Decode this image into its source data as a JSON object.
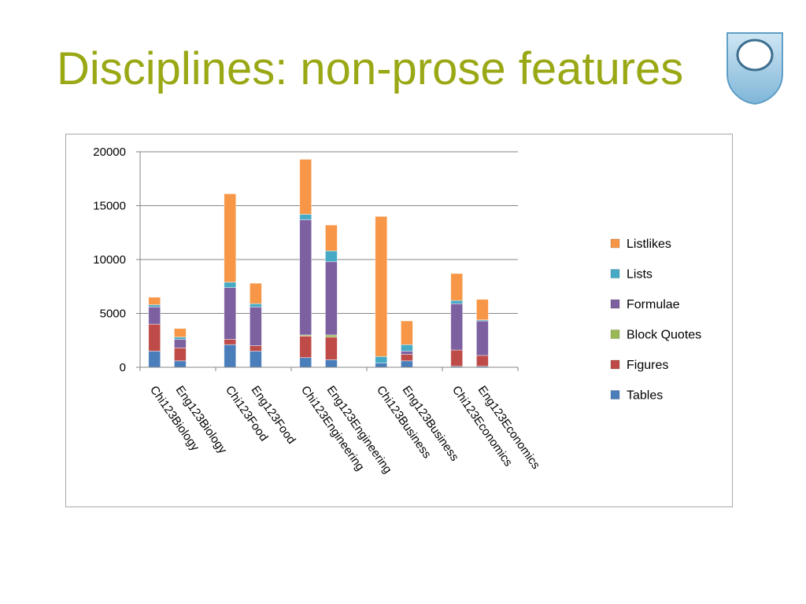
{
  "slide": {
    "title": "Disciplines: non-prose features"
  },
  "logo": {
    "icon": "open-university-shield-icon",
    "colors": {
      "outer": "#8fc3e0",
      "inner": "#ffffff",
      "rim": "#3d7fa8"
    }
  },
  "chart_data": {
    "type": "bar",
    "stacked": true,
    "categories": [
      "Chi123Biology",
      "Eng123Biology",
      "Chi123Food",
      "Eng123Food",
      "Chi123Engineering",
      "Eng123Engineering",
      "Chi123Business",
      "Eng123Business",
      "Chi123Economics",
      "Eng123Economics"
    ],
    "series": [
      {
        "name": "Tables",
        "color": "#4a7ebb",
        "values": [
          1500,
          600,
          2100,
          1500,
          900,
          700,
          400,
          600,
          100,
          100
        ]
      },
      {
        "name": "Figures",
        "color": "#be4b48",
        "values": [
          2500,
          1200,
          500,
          500,
          2000,
          2100,
          0,
          600,
          1500,
          1000
        ]
      },
      {
        "name": "Block Quotes",
        "color": "#98b954",
        "values": [
          0,
          0,
          0,
          0,
          100,
          200,
          0,
          0,
          0,
          0
        ]
      },
      {
        "name": "Formulae",
        "color": "#7d60a0",
        "values": [
          1600,
          800,
          4800,
          3600,
          10700,
          6800,
          0,
          300,
          4300,
          3200
        ]
      },
      {
        "name": "Lists",
        "color": "#46aac5",
        "values": [
          200,
          200,
          500,
          300,
          500,
          1000,
          600,
          600,
          300,
          100
        ]
      },
      {
        "name": "Listlikes",
        "color": "#f79646",
        "values": [
          700,
          800,
          8200,
          1900,
          5100,
          2400,
          13000,
          2200,
          2500,
          1900
        ]
      }
    ],
    "ylim": [
      0,
      20000
    ],
    "yticks": [
      "0",
      "5000",
      "10000",
      "15000",
      "20000"
    ],
    "grid": true,
    "legend_position": "right",
    "legend_order": [
      "Listlikes",
      "Lists",
      "Formulae",
      "Block Quotes",
      "Figures",
      "Tables"
    ],
    "title": "",
    "xlabel": "",
    "ylabel": ""
  }
}
